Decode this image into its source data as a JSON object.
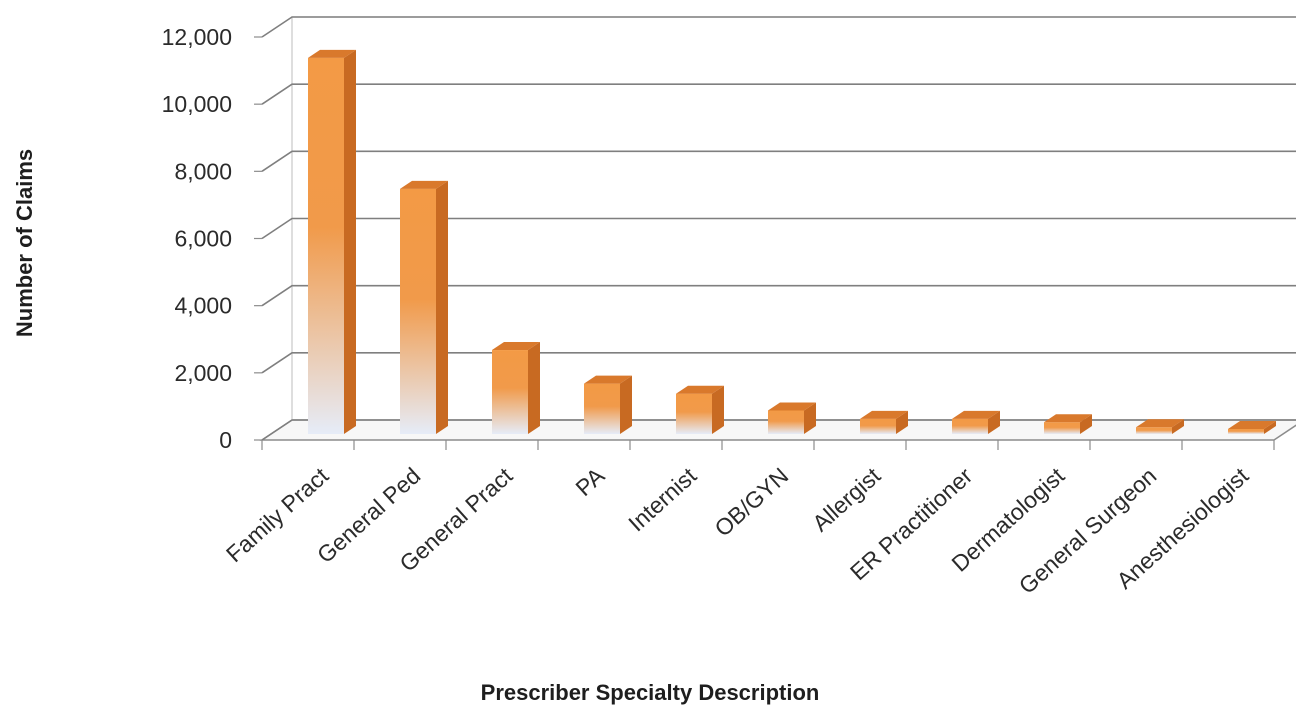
{
  "chart_data": {
    "type": "bar",
    "title": "",
    "xlabel": "Prescriber Specialty Description",
    "ylabel": "Number of Claims",
    "categories": [
      "Family Pract",
      "General Ped",
      "General Pract",
      "PA",
      "Internist",
      "OB/GYN",
      "Allergist",
      "ER Practitioner",
      "Dermatologist",
      "General Surgeon",
      "Anesthesiologist"
    ],
    "values": [
      11200,
      7300,
      2500,
      1500,
      1200,
      700,
      450,
      450,
      350,
      200,
      150
    ],
    "ylim": [
      0,
      12000
    ],
    "yticks": [
      "0",
      "2,000",
      "4,000",
      "6,000",
      "8,000",
      "10,000",
      "12,000"
    ],
    "grid": true,
    "legend": "none",
    "colors": {
      "bar_top": "#f39a45",
      "bar_bottom": "#e8eef8",
      "bar_side": "#c86a22",
      "bar_cap": "#d9792c",
      "grid": "#7f7f7f"
    }
  }
}
